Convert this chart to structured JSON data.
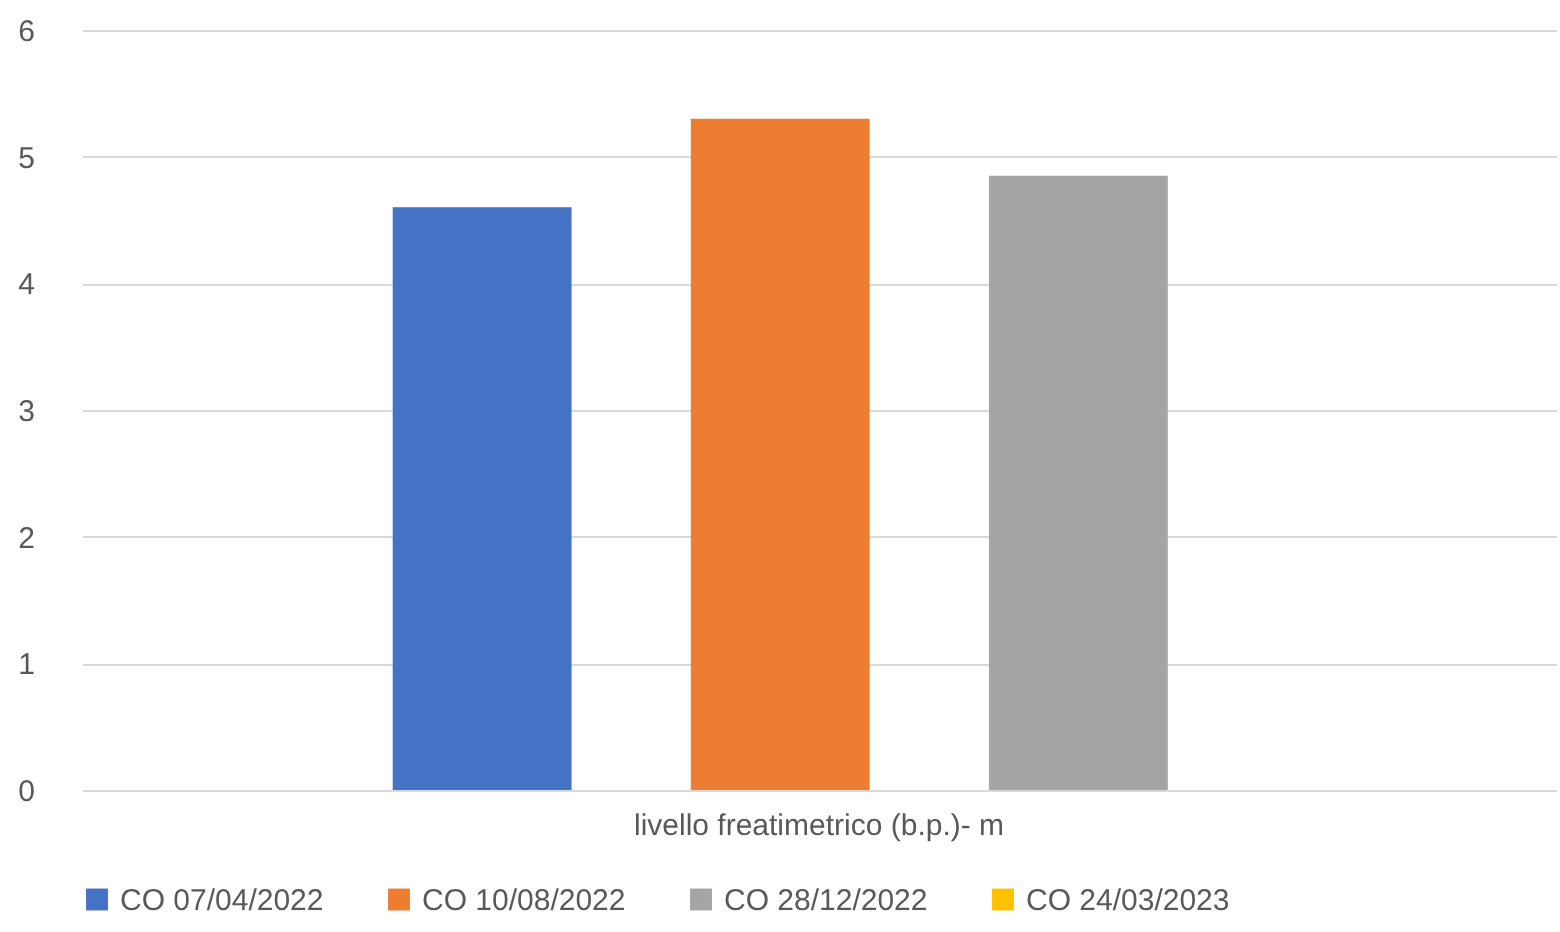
{
  "chart_data": {
    "type": "bar",
    "categories": [
      "livello freatimetrico (b.p.)- m"
    ],
    "series": [
      {
        "name": "CO 07/04/2022",
        "color": "#4472c4",
        "values": [
          4.6
        ]
      },
      {
        "name": "CO 10/08/2022",
        "color": "#ed7d31",
        "values": [
          5.3
        ]
      },
      {
        "name": "CO 28/12/2022",
        "color": "#a5a5a5",
        "values": [
          4.85
        ]
      },
      {
        "name": "CO 24/03/2023",
        "color": "#ffc000",
        "values": [
          null
        ]
      }
    ],
    "ylim": [
      0,
      6
    ],
    "yticks": [
      0,
      1,
      2,
      3,
      4,
      5,
      6
    ],
    "grid": "y",
    "legend": "bottom"
  }
}
